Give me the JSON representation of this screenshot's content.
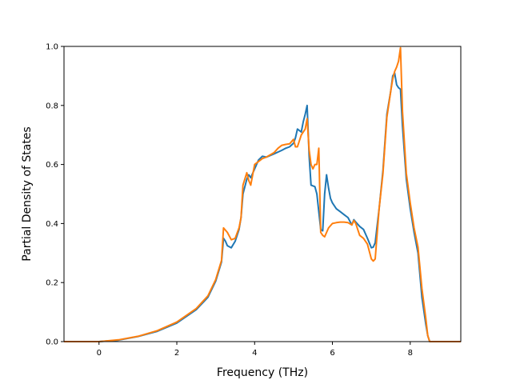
{
  "chart_data": {
    "type": "line",
    "title": "",
    "xlabel": "Frequency (THz)",
    "ylabel": "Partial Density of States",
    "xlim": [
      -0.9,
      9.3
    ],
    "ylim": [
      0.0,
      1.0
    ],
    "xticks": [
      0,
      2,
      4,
      6,
      8
    ],
    "yticks": [
      0.0,
      0.2,
      0.4,
      0.6,
      0.8,
      1.0
    ],
    "xtick_labels": [
      "0",
      "2",
      "4",
      "6",
      "8"
    ],
    "ytick_labels": [
      "0.0",
      "0.2",
      "0.4",
      "0.6",
      "0.8",
      "1.0"
    ],
    "grid": false,
    "legend": "none",
    "series": [
      {
        "color": "#1f77b4",
        "points": [
          [
            -0.9,
            0.0
          ],
          [
            0.0,
            0.0
          ],
          [
            0.5,
            0.005
          ],
          [
            1.0,
            0.017
          ],
          [
            1.5,
            0.035
          ],
          [
            2.0,
            0.063
          ],
          [
            2.5,
            0.108
          ],
          [
            2.8,
            0.15
          ],
          [
            3.0,
            0.205
          ],
          [
            3.15,
            0.27
          ],
          [
            3.2,
            0.35
          ],
          [
            3.25,
            0.34
          ],
          [
            3.3,
            0.325
          ],
          [
            3.4,
            0.318
          ],
          [
            3.5,
            0.34
          ],
          [
            3.6,
            0.38
          ],
          [
            3.65,
            0.42
          ],
          [
            3.7,
            0.5
          ],
          [
            3.8,
            0.55
          ],
          [
            3.85,
            0.565
          ],
          [
            3.9,
            0.555
          ],
          [
            4.0,
            0.585
          ],
          [
            4.05,
            0.6
          ],
          [
            4.1,
            0.615
          ],
          [
            4.2,
            0.628
          ],
          [
            4.3,
            0.625
          ],
          [
            4.5,
            0.636
          ],
          [
            4.7,
            0.648
          ],
          [
            4.8,
            0.655
          ],
          [
            4.9,
            0.66
          ],
          [
            5.0,
            0.672
          ],
          [
            5.05,
            0.69
          ],
          [
            5.1,
            0.72
          ],
          [
            5.2,
            0.71
          ],
          [
            5.25,
            0.745
          ],
          [
            5.3,
            0.77
          ],
          [
            5.35,
            0.8
          ],
          [
            5.4,
            0.63
          ],
          [
            5.45,
            0.53
          ],
          [
            5.55,
            0.525
          ],
          [
            5.6,
            0.5
          ],
          [
            5.7,
            0.38
          ],
          [
            5.75,
            0.375
          ],
          [
            5.8,
            0.5
          ],
          [
            5.85,
            0.565
          ],
          [
            5.9,
            0.52
          ],
          [
            5.95,
            0.485
          ],
          [
            6.0,
            0.47
          ],
          [
            6.1,
            0.45
          ],
          [
            6.2,
            0.44
          ],
          [
            6.3,
            0.43
          ],
          [
            6.4,
            0.42
          ],
          [
            6.5,
            0.395
          ],
          [
            6.55,
            0.413
          ],
          [
            6.6,
            0.405
          ],
          [
            6.7,
            0.39
          ],
          [
            6.8,
            0.38
          ],
          [
            6.9,
            0.35
          ],
          [
            7.0,
            0.318
          ],
          [
            7.05,
            0.32
          ],
          [
            7.1,
            0.335
          ],
          [
            7.2,
            0.45
          ],
          [
            7.3,
            0.58
          ],
          [
            7.4,
            0.77
          ],
          [
            7.5,
            0.85
          ],
          [
            7.55,
            0.9
          ],
          [
            7.6,
            0.91
          ],
          [
            7.65,
            0.87
          ],
          [
            7.7,
            0.86
          ],
          [
            7.75,
            0.855
          ],
          [
            7.8,
            0.73
          ],
          [
            7.9,
            0.55
          ],
          [
            8.0,
            0.45
          ],
          [
            8.1,
            0.37
          ],
          [
            8.2,
            0.3
          ],
          [
            8.3,
            0.15
          ],
          [
            8.4,
            0.06
          ],
          [
            8.45,
            0.02
          ],
          [
            8.5,
            0.0
          ],
          [
            9.3,
            0.0
          ]
        ]
      },
      {
        "color": "#ff7f0e",
        "points": [
          [
            -0.9,
            0.0
          ],
          [
            0.0,
            0.0
          ],
          [
            0.5,
            0.006
          ],
          [
            1.0,
            0.018
          ],
          [
            1.5,
            0.037
          ],
          [
            2.0,
            0.066
          ],
          [
            2.5,
            0.112
          ],
          [
            2.8,
            0.155
          ],
          [
            3.0,
            0.21
          ],
          [
            3.15,
            0.275
          ],
          [
            3.2,
            0.385
          ],
          [
            3.3,
            0.37
          ],
          [
            3.4,
            0.345
          ],
          [
            3.5,
            0.35
          ],
          [
            3.6,
            0.385
          ],
          [
            3.65,
            0.42
          ],
          [
            3.7,
            0.53
          ],
          [
            3.8,
            0.572
          ],
          [
            3.85,
            0.545
          ],
          [
            3.9,
            0.53
          ],
          [
            4.0,
            0.6
          ],
          [
            4.1,
            0.61
          ],
          [
            4.2,
            0.62
          ],
          [
            4.3,
            0.625
          ],
          [
            4.5,
            0.64
          ],
          [
            4.6,
            0.655
          ],
          [
            4.7,
            0.665
          ],
          [
            4.8,
            0.668
          ],
          [
            4.9,
            0.67
          ],
          [
            5.0,
            0.685
          ],
          [
            5.05,
            0.66
          ],
          [
            5.1,
            0.66
          ],
          [
            5.2,
            0.7
          ],
          [
            5.3,
            0.72
          ],
          [
            5.35,
            0.755
          ],
          [
            5.4,
            0.65
          ],
          [
            5.45,
            0.6
          ],
          [
            5.5,
            0.585
          ],
          [
            5.55,
            0.6
          ],
          [
            5.6,
            0.6
          ],
          [
            5.65,
            0.655
          ],
          [
            5.7,
            0.37
          ],
          [
            5.75,
            0.36
          ],
          [
            5.8,
            0.355
          ],
          [
            5.9,
            0.385
          ],
          [
            6.0,
            0.4
          ],
          [
            6.1,
            0.403
          ],
          [
            6.2,
            0.405
          ],
          [
            6.3,
            0.405
          ],
          [
            6.4,
            0.403
          ],
          [
            6.5,
            0.395
          ],
          [
            6.55,
            0.41
          ],
          [
            6.6,
            0.4
          ],
          [
            6.7,
            0.36
          ],
          [
            6.8,
            0.35
          ],
          [
            6.9,
            0.33
          ],
          [
            7.0,
            0.28
          ],
          [
            7.05,
            0.273
          ],
          [
            7.1,
            0.28
          ],
          [
            7.2,
            0.45
          ],
          [
            7.3,
            0.57
          ],
          [
            7.4,
            0.76
          ],
          [
            7.5,
            0.85
          ],
          [
            7.55,
            0.89
          ],
          [
            7.6,
            0.915
          ],
          [
            7.65,
            0.93
          ],
          [
            7.7,
            0.95
          ],
          [
            7.75,
            0.995
          ],
          [
            7.8,
            0.78
          ],
          [
            7.9,
            0.57
          ],
          [
            8.0,
            0.47
          ],
          [
            8.1,
            0.385
          ],
          [
            8.2,
            0.32
          ],
          [
            8.3,
            0.18
          ],
          [
            8.4,
            0.08
          ],
          [
            8.45,
            0.02
          ],
          [
            8.5,
            0.0
          ],
          [
            9.3,
            0.0
          ]
        ]
      }
    ]
  }
}
